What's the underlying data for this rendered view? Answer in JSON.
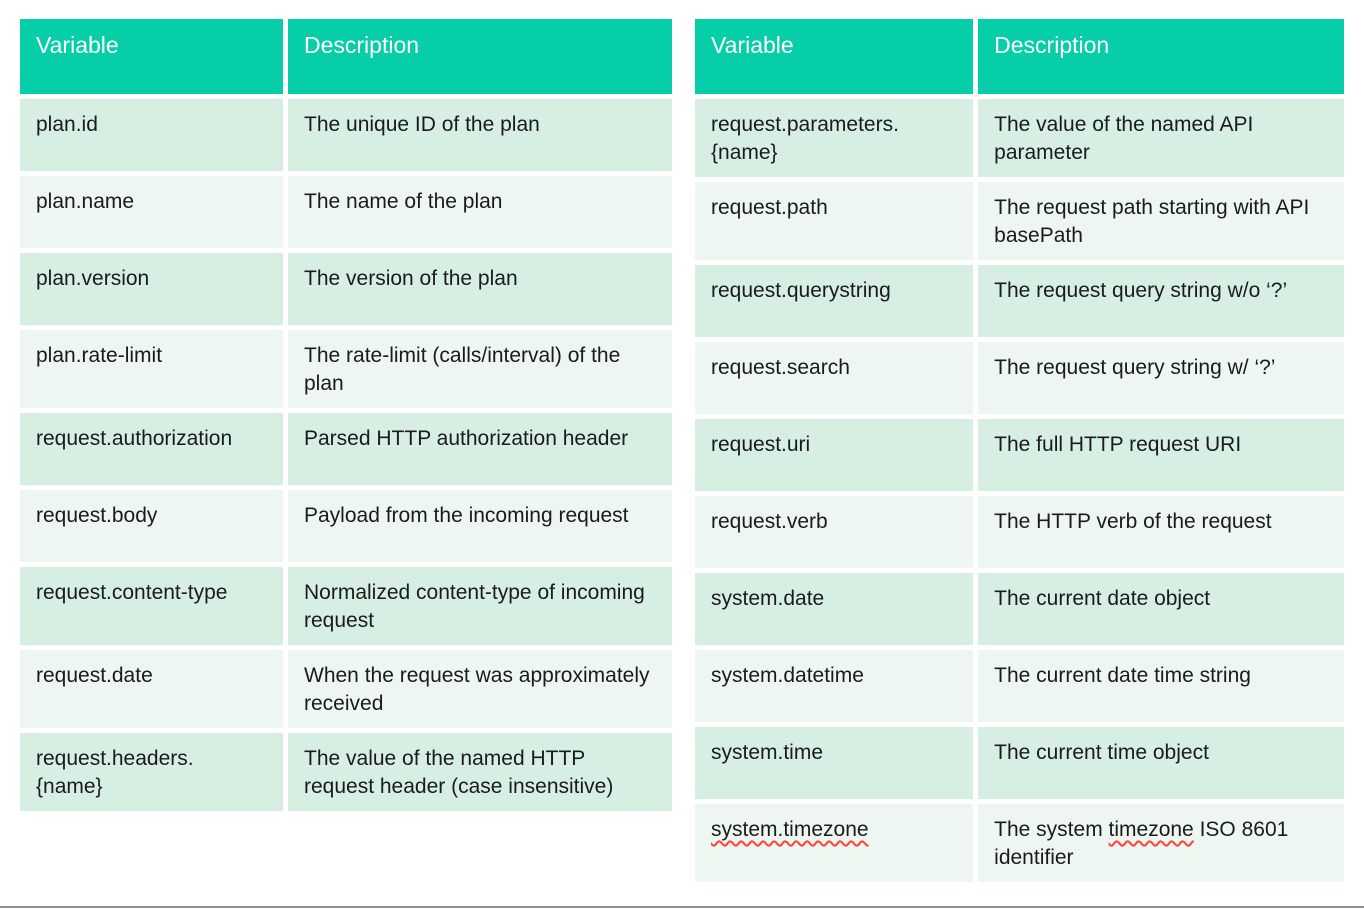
{
  "colors": {
    "header_bg": "#05CEA8",
    "row_odd_bg": "#D7EEE3",
    "row_even_bg": "#EDF6F1",
    "header_text": "#FFFFFF",
    "body_text": "#1B1B1B",
    "spellcheck_red": "#FF4136",
    "bottom_line": "#8C9392"
  },
  "tables": [
    {
      "id": "left",
      "headers": {
        "variable": "Variable",
        "description": "Description"
      },
      "rows": [
        {
          "variable": "plan.id",
          "description": "The unique ID of the plan"
        },
        {
          "variable": "plan.name",
          "description": "The name of the plan"
        },
        {
          "variable": "plan.version",
          "description": "The version of the plan"
        },
        {
          "variable": "plan.rate-limit",
          "description": "The rate-limit (calls/interval) of the plan"
        },
        {
          "variable": "request.authorization",
          "description": "Parsed HTTP authorization header"
        },
        {
          "variable": "request.body",
          "description": "Payload from the incoming request"
        },
        {
          "variable": "request.content-type",
          "description": "Normalized content-type of incoming request"
        },
        {
          "variable": "request.date",
          "description": "When the request was approximately received"
        },
        {
          "variable": "request.headers.\n{name}",
          "description": "The value of the named HTTP request header (case insensitive)"
        }
      ]
    },
    {
      "id": "right",
      "headers": {
        "variable": "Variable",
        "description": "Description"
      },
      "rows": [
        {
          "variable": "request.parameters.\n{name}",
          "description": "The value of the named API parameter"
        },
        {
          "variable": "request.path",
          "description": "The request path starting with API basePath"
        },
        {
          "variable": "request.querystring",
          "description": "The request query string w/o ‘?’"
        },
        {
          "variable": "request.search",
          "description": "The request query string w/ ‘?’"
        },
        {
          "variable": "request.uri",
          "description": "The full HTTP request URI"
        },
        {
          "variable": "request.verb",
          "description": "The HTTP verb of the request"
        },
        {
          "variable": "system.date",
          "description": "The current date object"
        },
        {
          "variable": "system.datetime",
          "description": "The current date time string"
        },
        {
          "variable": "system.time",
          "description": "The current time object"
        },
        {
          "variable": "system.timezone",
          "variable_misspelled": true,
          "description_parts": [
            {
              "text": "The system "
            },
            {
              "text": "timezone",
              "misspelled": true
            },
            {
              "text": " ISO 8601 identifier"
            }
          ]
        }
      ]
    }
  ]
}
